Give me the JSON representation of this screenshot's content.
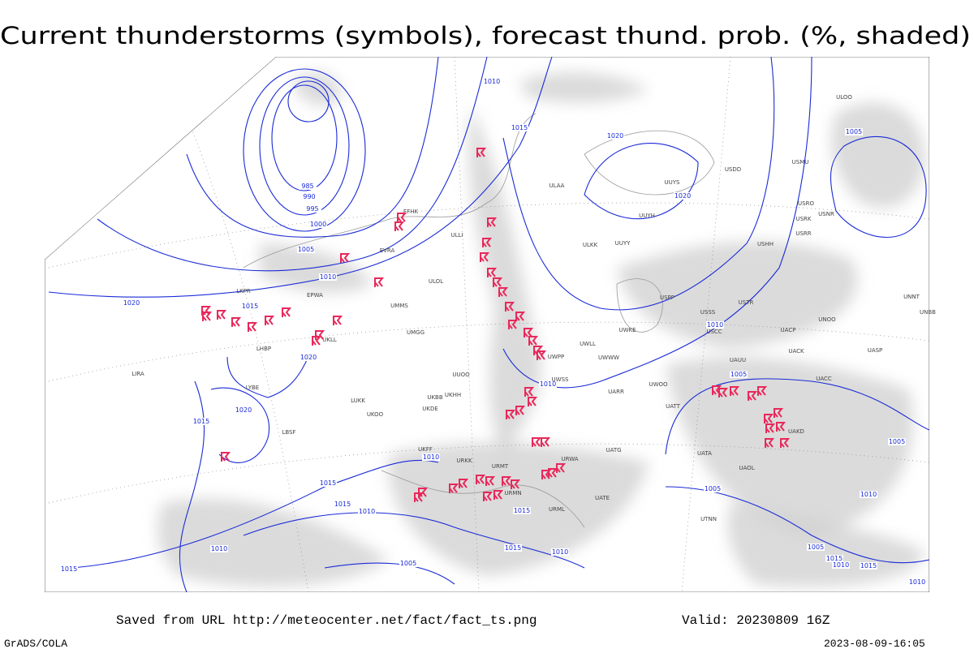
{
  "title": "Current thunderstorms (symbols), forecast thund. prob. (%, shaded)",
  "footer": {
    "saved": "Saved from URL http://meteocenter.net/fact/fact_ts.png",
    "valid": "Valid: 20230809 16Z",
    "software": "GrADS/COLA",
    "timestamp": "2023-08-09-16:05"
  },
  "isobar_labels": [
    "1010",
    "1015",
    "1020",
    "1020",
    "1005",
    "985",
    "990",
    "995",
    "1000",
    "1005",
    "1010",
    "1015",
    "1020",
    "1020",
    "1020",
    "1015",
    "1010",
    "1015",
    "1015",
    "1010",
    "1015",
    "1015",
    "1010",
    "1005",
    "1010",
    "1015",
    "1010",
    "1010",
    "1005",
    "1005",
    "1005",
    "1010",
    "1005",
    "1015",
    "1010",
    "1015",
    "1010"
  ],
  "stations": [
    "ULOO",
    "ULLI",
    "ULOL",
    "ULAA",
    "ULKK",
    "UUYY",
    "UUYH",
    "UUYS",
    "USDD",
    "USMU",
    "USRO",
    "USRK",
    "USRR",
    "USNR",
    "USHH",
    "USPP",
    "USSS",
    "USTR",
    "USCC",
    "UNBB",
    "UNNT",
    "UACP",
    "UNOO",
    "UACK",
    "UASP",
    "UAUU",
    "UACC",
    "UAKD",
    "UATA",
    "UAOL",
    "UATG",
    "UATE",
    "UTNN",
    "UARR",
    "UWOO",
    "UATT",
    "UWKE",
    "UWLL",
    "UWWW",
    "UWPP",
    "UWSS",
    "URWA",
    "URML",
    "URMT",
    "URMN",
    "URKK",
    "UKFF",
    "UKDE",
    "UKOO",
    "LUKK",
    "LBSF",
    "LYBE",
    "UMMS",
    "UMGG",
    "UKLL",
    "EPWA",
    "LKPR",
    "LHBP",
    "LIRA",
    "EFHK",
    "EVRA",
    "UKBB",
    "UKHH",
    "UUOO"
  ]
}
